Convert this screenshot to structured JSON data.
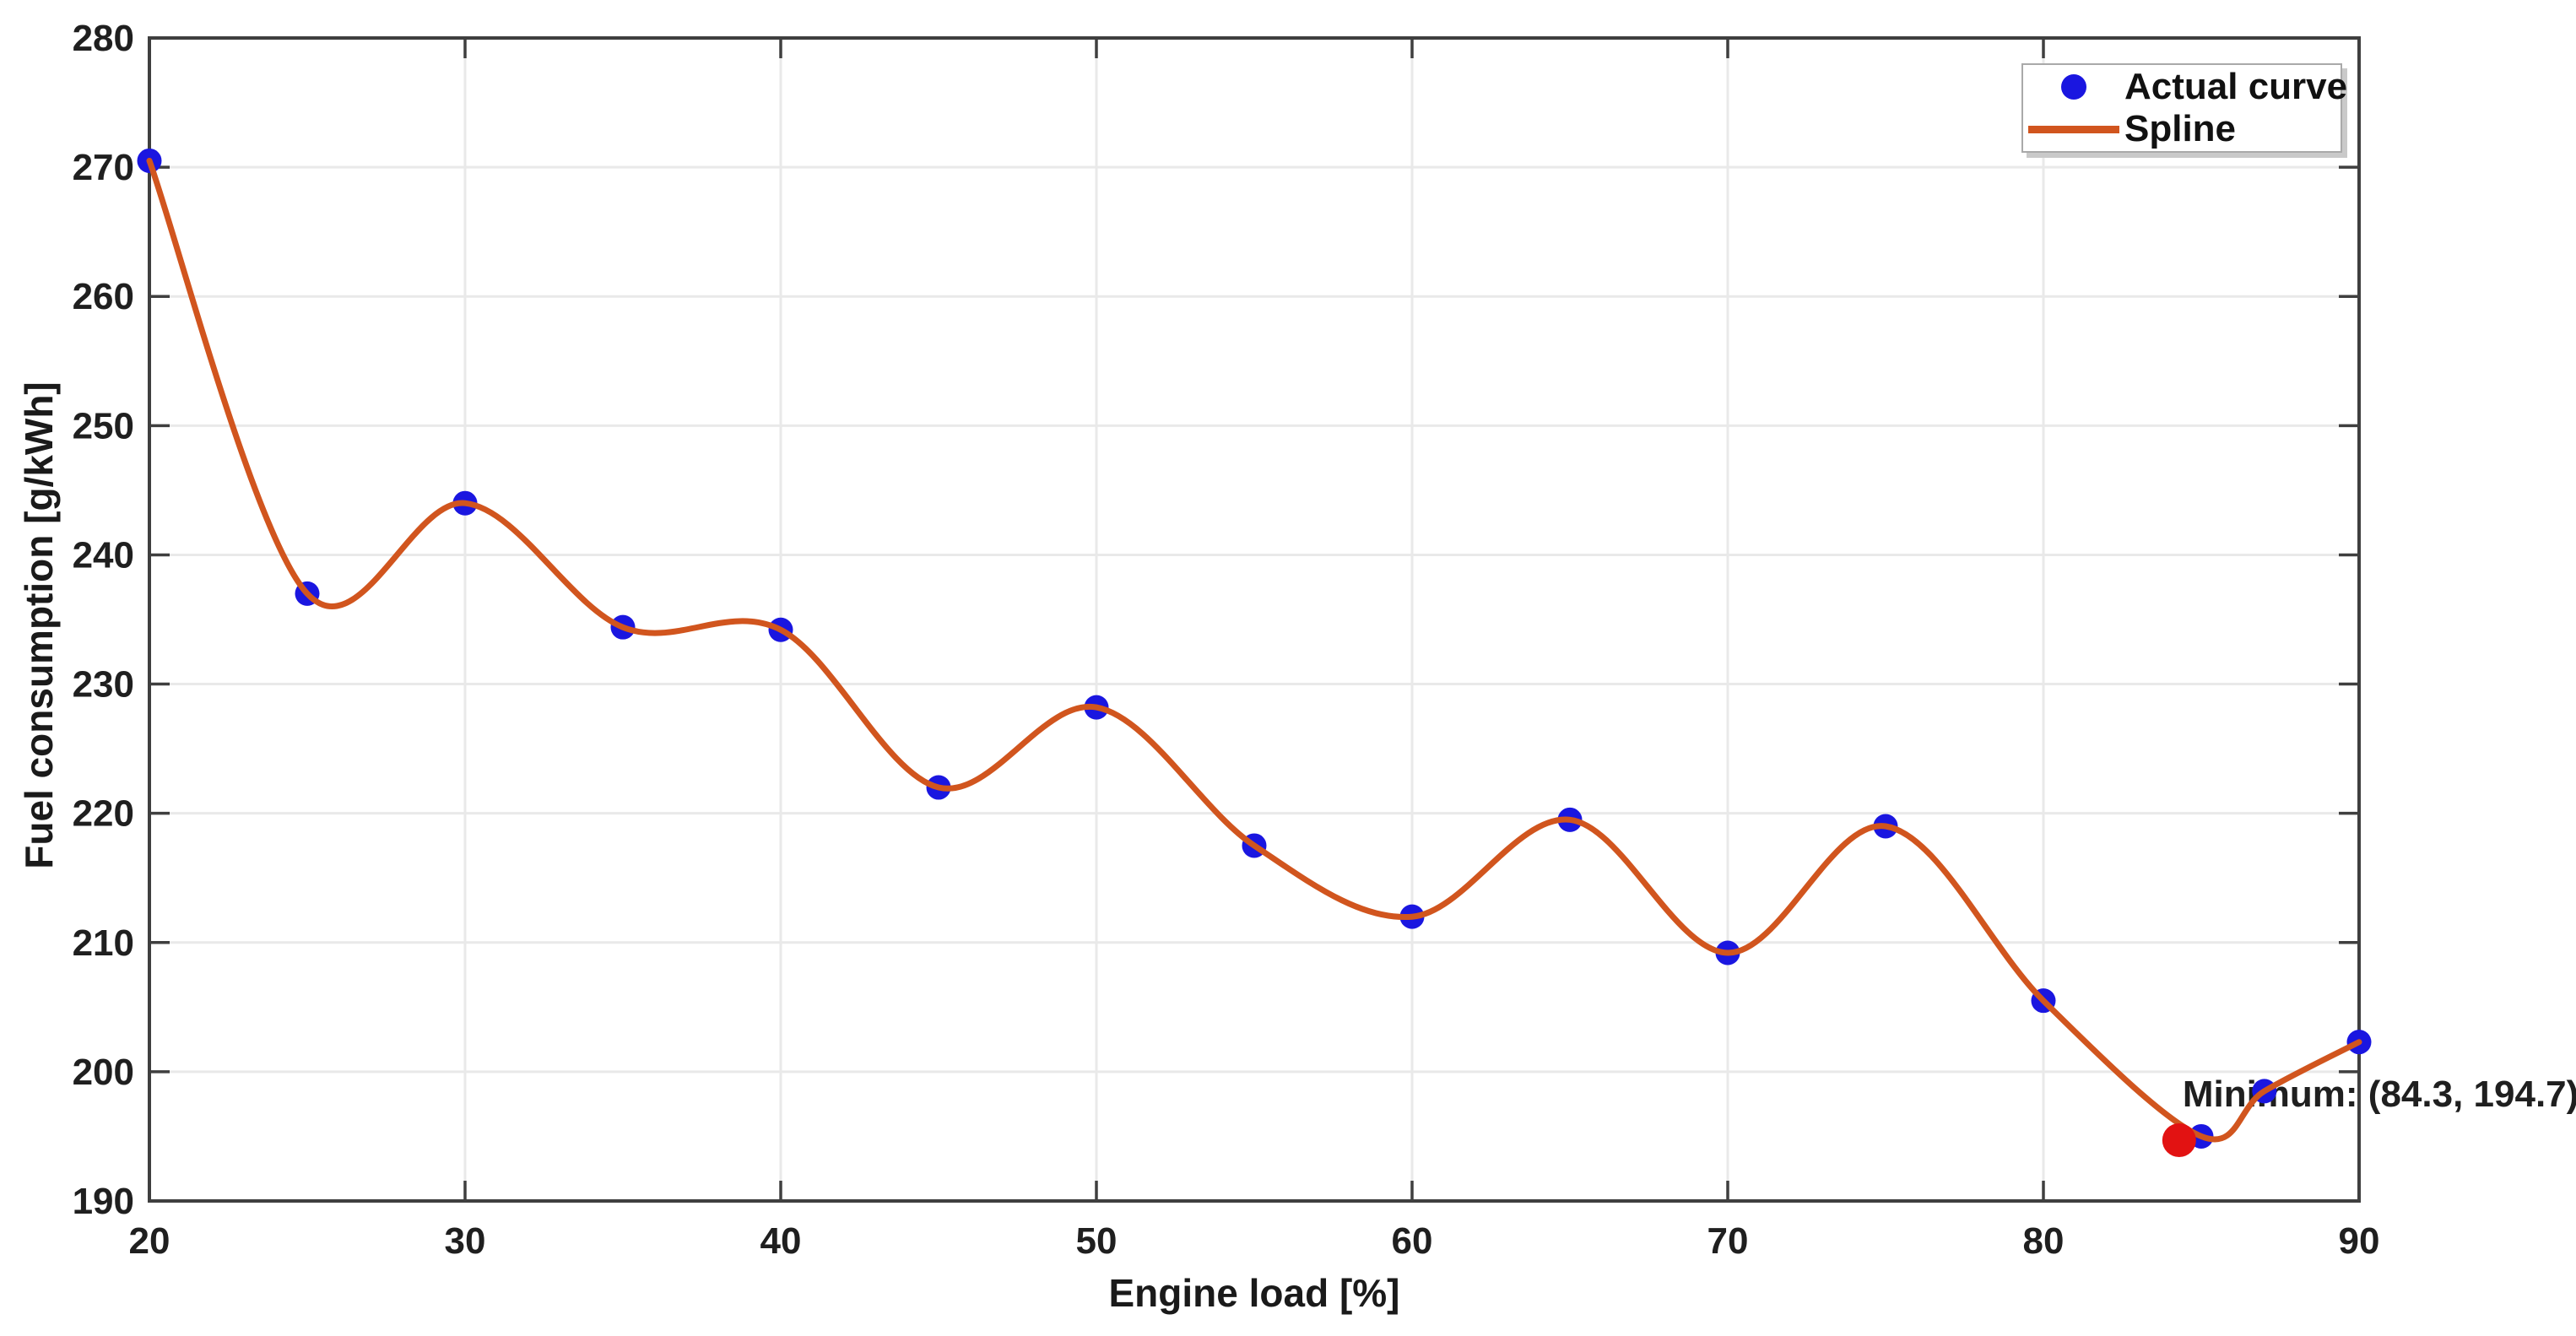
{
  "chart_data": {
    "type": "line",
    "title": "",
    "xlabel": "Engine load [%]",
    "ylabel": "Fuel consumption [g/kWh]",
    "xlim": [
      20,
      90
    ],
    "ylim": [
      190,
      280
    ],
    "x_ticks": [
      20,
      30,
      40,
      50,
      60,
      70,
      80,
      90
    ],
    "y_ticks": [
      190,
      200,
      210,
      220,
      230,
      240,
      250,
      260,
      270,
      280
    ],
    "grid": true,
    "legend_position": "top-right-inside",
    "categories_x": [
      20,
      25,
      30,
      35,
      40,
      45,
      50,
      55,
      60,
      65,
      70,
      75,
      80,
      85,
      87,
      90
    ],
    "series": [
      {
        "name": "Actual curve",
        "style": "scatter",
        "color": "#1a16e0",
        "x": [
          20,
          25,
          30,
          35,
          40,
          45,
          50,
          55,
          60,
          65,
          70,
          75,
          80,
          85,
          87,
          90
        ],
        "y": [
          270.5,
          237,
          244,
          234.4,
          234.2,
          222,
          228.2,
          217.5,
          212,
          219.5,
          209.2,
          219,
          205.5,
          195,
          198.5,
          202.3
        ]
      },
      {
        "name": "Spline",
        "style": "spline-line",
        "color": "#d1551e",
        "x": [
          20,
          25,
          30,
          35,
          40,
          45,
          50,
          55,
          60,
          65,
          70,
          75,
          80,
          85,
          87,
          90
        ],
        "y": [
          270.5,
          237,
          244,
          234.4,
          234.2,
          222,
          228.2,
          217.5,
          212,
          219.5,
          209.2,
          219,
          205.5,
          195,
          198.5,
          202.3
        ]
      }
    ],
    "minimum_point": {
      "x": 84.3,
      "y": 194.7,
      "color": "#e21212"
    }
  },
  "annotation": {
    "text": "Minimum: (84.3, 194.7)"
  },
  "legend": {
    "items": [
      {
        "label": "Actual curve",
        "marker": "dot",
        "color": "#1a16e0"
      },
      {
        "label": "Spline",
        "marker": "line",
        "color": "#d1551e"
      }
    ]
  },
  "colors": {
    "frame": "#3f3f3f",
    "grid": "#e9e9e9",
    "tick_text": "#1f1f1f",
    "annotation_text": "#1a1a1a",
    "background": "#ffffff"
  }
}
